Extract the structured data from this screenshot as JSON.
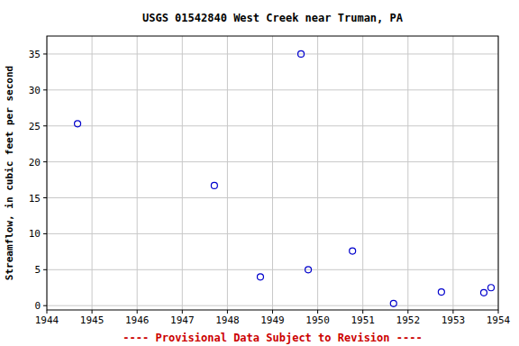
{
  "chart_data": {
    "type": "scatter",
    "title": "USGS 01542840 West Creek near Truman, PA",
    "y_label": "Streamflow, in cubic feet per second",
    "footnote": "---- Provisional Data Subject to Revision ----",
    "x": [
      1944.68,
      1947.71,
      1948.73,
      1949.63,
      1949.79,
      1950.77,
      1951.68,
      1952.74,
      1953.68,
      1953.84
    ],
    "values": [
      25.3,
      16.7,
      4,
      35,
      5,
      7.6,
      0.3,
      1.9,
      1.8,
      2.5
    ],
    "color": "#0000cc",
    "marker": "open-circle",
    "xlim": [
      1944,
      1954
    ],
    "xticks": [
      1944,
      1945,
      1946,
      1947,
      1948,
      1949,
      1950,
      1951,
      1952,
      1953,
      1954
    ],
    "ylim": [
      -0.6,
      37.5
    ],
    "yticks": [
      0,
      5,
      10,
      15,
      20,
      25,
      30,
      35
    ],
    "grid": true
  }
}
